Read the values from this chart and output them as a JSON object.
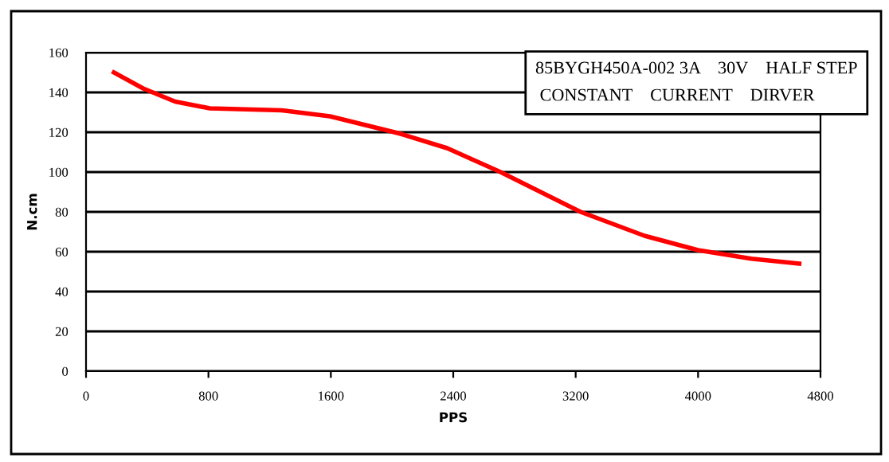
{
  "chart_data": {
    "type": "line",
    "xlabel": "PPS",
    "ylabel": "N.cm",
    "annotations": [
      "85BYGH450A-002 3A    30V    HALF STEP\n CONSTANT    CURRENT    DIRVER"
    ],
    "x": [
      182,
      373,
      582,
      809,
      1280,
      1594,
      2047,
      2360,
      2709,
      3232,
      3650,
      3999,
      4347,
      4661
    ],
    "series": [
      {
        "color": "#ff0000",
        "values": [
          150,
          142,
          135.4,
          132,
          131,
          128,
          119.4,
          112,
          100,
          80,
          68,
          60.8,
          56.5,
          54
        ]
      }
    ],
    "xlim": [
      0,
      4800
    ],
    "xticks": [
      0,
      800,
      1600,
      2400,
      3200,
      4000,
      4800
    ],
    "ylim": [
      0,
      160
    ],
    "yticks": [
      0,
      20,
      40,
      60,
      80,
      100,
      120,
      140,
      160
    ],
    "grid": "y",
    "marker": "none",
    "line_style": "solid"
  }
}
